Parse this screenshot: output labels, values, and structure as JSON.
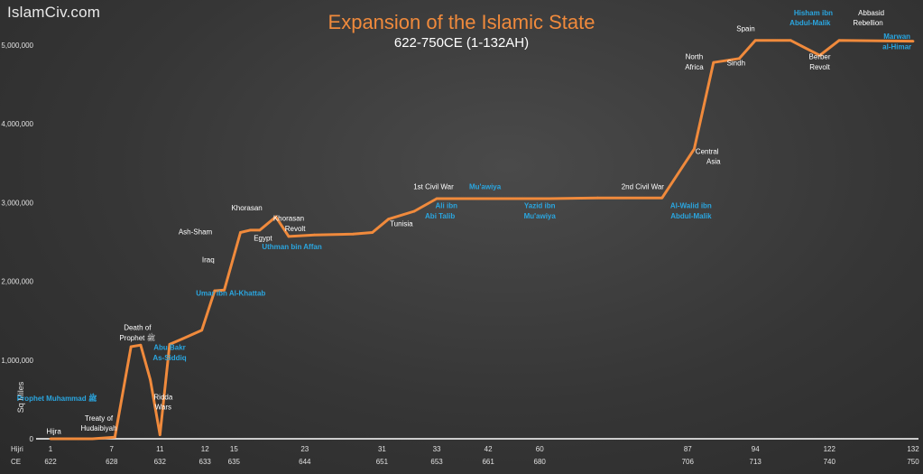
{
  "brand": "IslamCiv.com",
  "header": {
    "title": "Expansion of the Islamic State",
    "subtitle": "622-750CE (1-132AH)"
  },
  "chart_data": {
    "type": "line",
    "title": "Expansion of the Islamic State",
    "subtitle": "622-750CE (1-132AH)",
    "ylabel": "Sq Miles",
    "ylim": [
      0,
      5000000
    ],
    "yticks": [
      0,
      1000000,
      2000000,
      3000000,
      4000000,
      5000000
    ],
    "ytick_labels": [
      "0",
      "1,000,000",
      "2,000,000",
      "3,000,000",
      "4,000,000",
      "5,000,000"
    ],
    "x_row_labels": [
      "Hijri",
      "CE"
    ],
    "x_ticks": [
      {
        "hijri": "1",
        "ce": "622",
        "x": 0
      },
      {
        "hijri": "7",
        "ce": "628",
        "x": 1.9
      },
      {
        "hijri": "11",
        "ce": "632",
        "x": 3.4
      },
      {
        "hijri": "12",
        "ce": "633",
        "x": 4.8
      },
      {
        "hijri": "15",
        "ce": "635",
        "x": 5.7
      },
      {
        "hijri": "23",
        "ce": "644",
        "x": 7.9
      },
      {
        "hijri": "31",
        "ce": "651",
        "x": 10.3
      },
      {
        "hijri": "33",
        "ce": "653",
        "x": 12.0
      },
      {
        "hijri": "42",
        "ce": "661",
        "x": 13.6
      },
      {
        "hijri": "60",
        "ce": "680",
        "x": 15.2
      },
      {
        "hijri": "87",
        "ce": "706",
        "x": 19.8
      },
      {
        "hijri": "94",
        "ce": "713",
        "x": 21.9
      },
      {
        "hijri": "122",
        "ce": "740",
        "x": 24.2
      },
      {
        "hijri": "132",
        "ce": "750",
        "x": 26.8
      }
    ],
    "x": [
      0,
      1.3,
      2.0,
      2.5,
      2.8,
      3.1,
      3.4,
      3.7,
      4.1,
      4.7,
      5.1,
      5.4,
      5.9,
      6.2,
      6.5,
      7.0,
      7.4,
      8.2,
      9.4,
      10.0,
      10.5,
      11.3,
      12.0,
      13.0,
      13.6,
      14.5,
      15.5,
      17.0,
      19.0,
      20.0,
      20.6,
      21.4,
      21.9,
      23.0,
      23.9,
      24.5,
      26.8
    ],
    "series": [
      {
        "values": [
          0,
          0,
          20000,
          1170000,
          1190000,
          750000,
          50000,
          1200000,
          1270000,
          1380000,
          1880000,
          1890000,
          2620000,
          2650000,
          2650000,
          2820000,
          2570000,
          2590000,
          2600000,
          2620000,
          2790000,
          2890000,
          3050000,
          3050000,
          3050000,
          3050000,
          3050000,
          3060000,
          3060000,
          3680000,
          4780000,
          4830000,
          5060000,
          5060000,
          4870000,
          5060000,
          5050000
        ]
      }
    ],
    "annotations": [
      {
        "text": "Hijra",
        "x": 0.1,
        "y": 65000,
        "kind": "event"
      },
      {
        "text": "Prophet Muhammad ﷺ",
        "x": 0.2,
        "y": 480000,
        "kind": "ruler"
      },
      {
        "text": "Treaty of",
        "x": 1.5,
        "y": 230000,
        "kind": "event"
      },
      {
        "text": "Hudaibiyah",
        "x": 1.5,
        "y": 105000,
        "kind": "event"
      },
      {
        "text": "Death of",
        "x": 2.7,
        "y": 1380000,
        "kind": "event"
      },
      {
        "text": "Prophet ﷺ",
        "x": 2.7,
        "y": 1250000,
        "kind": "event"
      },
      {
        "text": "Ridda",
        "x": 3.5,
        "y": 500000,
        "kind": "event"
      },
      {
        "text": "Wars",
        "x": 3.5,
        "y": 370000,
        "kind": "event"
      },
      {
        "text": "Abu Bakr",
        "x": 3.7,
        "y": 1130000,
        "kind": "ruler"
      },
      {
        "text": "As-Siddiq",
        "x": 3.7,
        "y": 1000000,
        "kind": "ruler"
      },
      {
        "text": "Umar ibn Al-Khattab",
        "x": 5.6,
        "y": 1820000,
        "kind": "ruler"
      },
      {
        "text": "Iraq",
        "x": 4.9,
        "y": 2240000,
        "kind": "event"
      },
      {
        "text": "Ash-Sham",
        "x": 4.5,
        "y": 2600000,
        "kind": "event"
      },
      {
        "text": "Khorasan",
        "x": 6.1,
        "y": 2900000,
        "kind": "event"
      },
      {
        "text": "Egypt",
        "x": 6.6,
        "y": 2520000,
        "kind": "event"
      },
      {
        "text": "Khorasan",
        "x": 7.4,
        "y": 2770000,
        "kind": "event"
      },
      {
        "text": "Revolt",
        "x": 7.6,
        "y": 2640000,
        "kind": "event"
      },
      {
        "text": "Uthman bin Affan",
        "x": 7.5,
        "y": 2410000,
        "kind": "ruler"
      },
      {
        "text": "Tunisia",
        "x": 10.9,
        "y": 2700000,
        "kind": "event"
      },
      {
        "text": "1st Civil War",
        "x": 11.9,
        "y": 3170000,
        "kind": "event"
      },
      {
        "text": "Mu'awiya",
        "x": 13.5,
        "y": 3170000,
        "kind": "ruler"
      },
      {
        "text": "Ali ibn",
        "x": 12.3,
        "y": 2930000,
        "kind": "ruler"
      },
      {
        "text": "Abi Talib",
        "x": 12.1,
        "y": 2800000,
        "kind": "ruler"
      },
      {
        "text": "Yazid ibn",
        "x": 15.2,
        "y": 2930000,
        "kind": "ruler"
      },
      {
        "text": "Mu'awiya",
        "x": 15.2,
        "y": 2800000,
        "kind": "ruler"
      },
      {
        "text": "2nd Civil War",
        "x": 18.4,
        "y": 3170000,
        "kind": "event"
      },
      {
        "text": "Al-Walid ibn",
        "x": 19.9,
        "y": 2930000,
        "kind": "ruler"
      },
      {
        "text": "Abdul-Malik",
        "x": 19.9,
        "y": 2800000,
        "kind": "ruler"
      },
      {
        "text": "Central",
        "x": 20.4,
        "y": 3620000,
        "kind": "event"
      },
      {
        "text": "Asia",
        "x": 20.6,
        "y": 3490000,
        "kind": "event"
      },
      {
        "text": "North",
        "x": 20.0,
        "y": 4820000,
        "kind": "event"
      },
      {
        "text": "Africa",
        "x": 20.0,
        "y": 4690000,
        "kind": "event"
      },
      {
        "text": "Sindh",
        "x": 21.3,
        "y": 4740000,
        "kind": "event"
      },
      {
        "text": "Spain",
        "x": 21.6,
        "y": 5180000,
        "kind": "event"
      },
      {
        "text": "Hisham ibn",
        "x": 23.7,
        "y": 5380000,
        "kind": "ruler"
      },
      {
        "text": "Abdul-Malik",
        "x": 23.6,
        "y": 5250000,
        "kind": "ruler"
      },
      {
        "text": "Berber",
        "x": 23.9,
        "y": 4820000,
        "kind": "event"
      },
      {
        "text": "Revolt",
        "x": 23.9,
        "y": 4690000,
        "kind": "event"
      },
      {
        "text": "Abbasid",
        "x": 25.5,
        "y": 5380000,
        "kind": "event"
      },
      {
        "text": "Rebellion",
        "x": 25.4,
        "y": 5250000,
        "kind": "event"
      },
      {
        "text": "Marwan",
        "x": 26.3,
        "y": 5080000,
        "kind": "ruler"
      },
      {
        "text": "al-Himar",
        "x": 26.3,
        "y": 4950000,
        "kind": "ruler"
      }
    ],
    "colors": {
      "line": "#f08a3c",
      "event_text": "#ffffff",
      "ruler_text": "#2aa6e0"
    },
    "grid": false
  }
}
